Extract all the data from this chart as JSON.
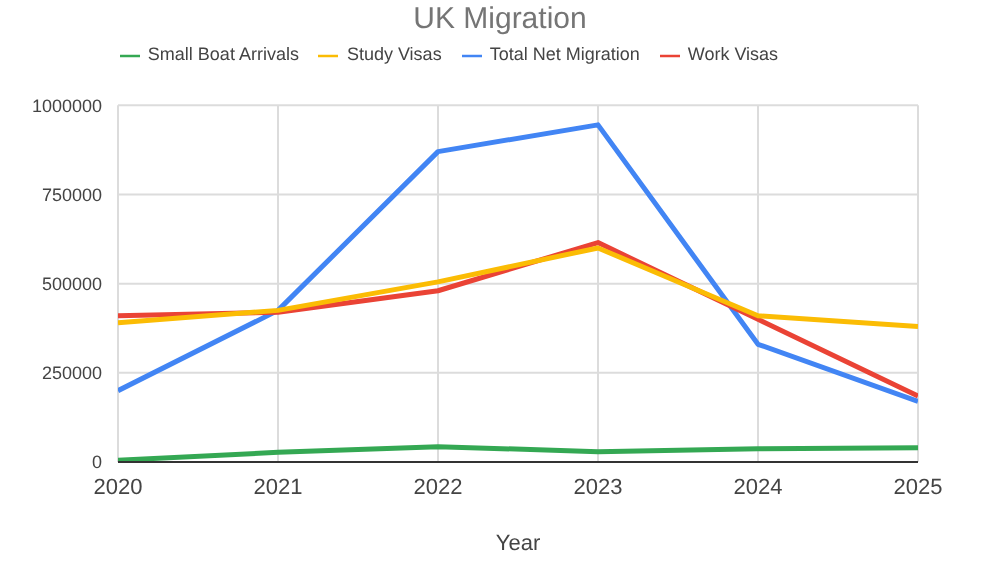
{
  "chart_data": {
    "type": "line",
    "title": "UK Migration",
    "xlabel": "Year",
    "x": [
      2020,
      2021,
      2022,
      2023,
      2024,
      2025
    ],
    "series": [
      {
        "name": "Total Net Migration",
        "color": "#4285f4",
        "values": [
          200000,
          425000,
          870000,
          945000,
          330000,
          170000
        ]
      },
      {
        "name": "Work Visas",
        "color": "#ea4335",
        "values": [
          410000,
          420000,
          480000,
          615000,
          400000,
          185000
        ]
      },
      {
        "name": "Study Visas",
        "color": "#fbbc04",
        "values": [
          390000,
          425000,
          505000,
          600000,
          410000,
          380000
        ]
      },
      {
        "name": "Small Boat Arrivals",
        "color": "#34a853",
        "values": [
          5000,
          27000,
          43000,
          29000,
          37000,
          40000
        ]
      }
    ],
    "xlim": [
      2020,
      2025
    ],
    "xticks": [
      2020,
      2021,
      2022,
      2023,
      2024,
      2025
    ],
    "ylim": [
      0,
      1000000
    ],
    "yticks": [
      0,
      250000,
      500000,
      750000,
      1000000
    ],
    "grid": true,
    "legend": "top",
    "marker": "none",
    "line_style": "solid"
  }
}
